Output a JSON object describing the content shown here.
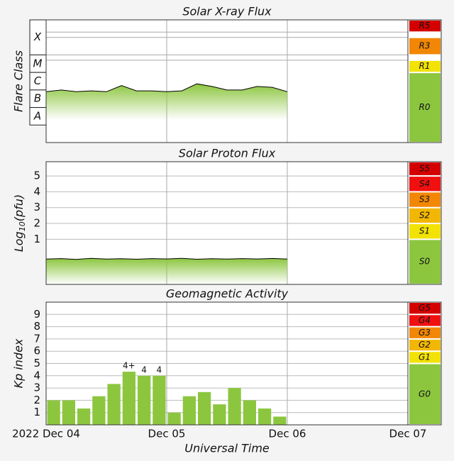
{
  "time_axis": {
    "xlim": [
      0,
      3
    ],
    "xticks": [
      {
        "value": 0,
        "label": "2022 Dec 04"
      },
      {
        "value": 1,
        "label": "Dec 05"
      },
      {
        "value": 2,
        "label": "Dec 06"
      },
      {
        "value": 3,
        "label": "Dec 07"
      }
    ],
    "x_label": "Universal Time"
  },
  "chart_data": [
    {
      "type": "area",
      "title": "Solar X-ray Flux",
      "y_label": "Flare Class",
      "ylim": [
        -9,
        -2
      ],
      "grid_lines": [
        -2.7,
        -3,
        -4,
        -4.3
      ],
      "class_bands": [
        {
          "label": "X",
          "from": -4,
          "to": -2
        },
        {
          "label": "M",
          "from": -5,
          "to": -4
        },
        {
          "label": "C",
          "from": -6,
          "to": -5
        },
        {
          "label": "B",
          "from": -7,
          "to": -6
        },
        {
          "label": "A",
          "from": -8,
          "to": -7
        }
      ],
      "scale_bands": [
        {
          "label": "R5",
          "from": -2.7,
          "to": -2,
          "color": "#d40000"
        },
        {
          "label": "R3",
          "from": -4,
          "to": -3,
          "color": "#f28705"
        },
        {
          "label": "R1",
          "from": -5,
          "to": -4.3,
          "color": "#f2e205"
        },
        {
          "label": "R0",
          "from": -9,
          "to": -5,
          "color": "#8cc63f"
        }
      ],
      "color": "#000000",
      "fill_color": "#8cc63f",
      "x": [
        0,
        0.125,
        0.25,
        0.375,
        0.5,
        0.625,
        0.75,
        0.875,
        1,
        1.125,
        1.25,
        1.375,
        1.5,
        1.625,
        1.75,
        1.875,
        2
      ],
      "values": [
        -6.1,
        -6.0,
        -6.1,
        -6.05,
        -6.1,
        -5.75,
        -6.05,
        -6.05,
        -6.1,
        -6.05,
        -5.65,
        -5.8,
        -6.0,
        -6.0,
        -5.8,
        -5.85,
        -6.1
      ]
    },
    {
      "type": "area",
      "title": "Solar Proton Flux",
      "y_label_parts": [
        "Log",
        "10",
        "(pfu)"
      ],
      "ylim": [
        -1.85,
        5.9
      ],
      "yticks": [
        1,
        2,
        3,
        4,
        5
      ],
      "grid": true,
      "scale_bands": [
        {
          "label": "S5",
          "from": 5,
          "to": 5.9,
          "color": "#d40000"
        },
        {
          "label": "S4",
          "from": 4,
          "to": 5,
          "color": "#f01010"
        },
        {
          "label": "S3",
          "from": 3,
          "to": 4,
          "color": "#f28705"
        },
        {
          "label": "S2",
          "from": 2,
          "to": 3,
          "color": "#f2b705"
        },
        {
          "label": "S1",
          "from": 1,
          "to": 2,
          "color": "#f2e205"
        },
        {
          "label": "S0",
          "from": -1.85,
          "to": 1,
          "color": "#8cc63f"
        }
      ],
      "color": "#000000",
      "fill_color": "#8cc63f",
      "x": [
        0,
        0.125,
        0.25,
        0.375,
        0.5,
        0.625,
        0.75,
        0.875,
        1,
        1.125,
        1.25,
        1.375,
        1.5,
        1.625,
        1.75,
        1.875,
        2
      ],
      "values": [
        -0.25,
        -0.22,
        -0.27,
        -0.2,
        -0.25,
        -0.23,
        -0.26,
        -0.22,
        -0.24,
        -0.2,
        -0.26,
        -0.23,
        -0.25,
        -0.22,
        -0.24,
        -0.21,
        -0.25
      ]
    },
    {
      "type": "bar",
      "title": "Geomagnetic Activity",
      "y_label": "Kp index",
      "ylim": [
        0,
        10
      ],
      "yticks": [
        1,
        2,
        3,
        4,
        5,
        6,
        7,
        8,
        9
      ],
      "grid": true,
      "scale_bands": [
        {
          "label": "G5",
          "from": 9,
          "to": 10,
          "color": "#d40000"
        },
        {
          "label": "G4",
          "from": 8,
          "to": 9,
          "color": "#f01010"
        },
        {
          "label": "G3",
          "from": 7,
          "to": 8,
          "color": "#f28705"
        },
        {
          "label": "G2",
          "from": 6,
          "to": 7,
          "color": "#f2b705"
        },
        {
          "label": "G1",
          "from": 5,
          "to": 6,
          "color": "#f2e205"
        },
        {
          "label": "G0",
          "from": 0,
          "to": 5,
          "color": "#8cc63f"
        }
      ],
      "color": "#8cc63f",
      "x": [
        0,
        0.125,
        0.25,
        0.375,
        0.5,
        0.625,
        0.75,
        0.875,
        1,
        1.125,
        1.25,
        1.375,
        1.5,
        1.625,
        1.75,
        1.875
      ],
      "values": [
        2,
        2,
        1.33,
        2.33,
        3.33,
        4.33,
        4,
        4,
        1,
        2.33,
        2.67,
        1.67,
        3,
        2,
        1.33,
        0.67
      ],
      "value_labels": [
        null,
        null,
        null,
        null,
        null,
        "4+",
        "4",
        "4",
        null,
        null,
        null,
        null,
        null,
        null,
        null,
        null
      ]
    }
  ]
}
